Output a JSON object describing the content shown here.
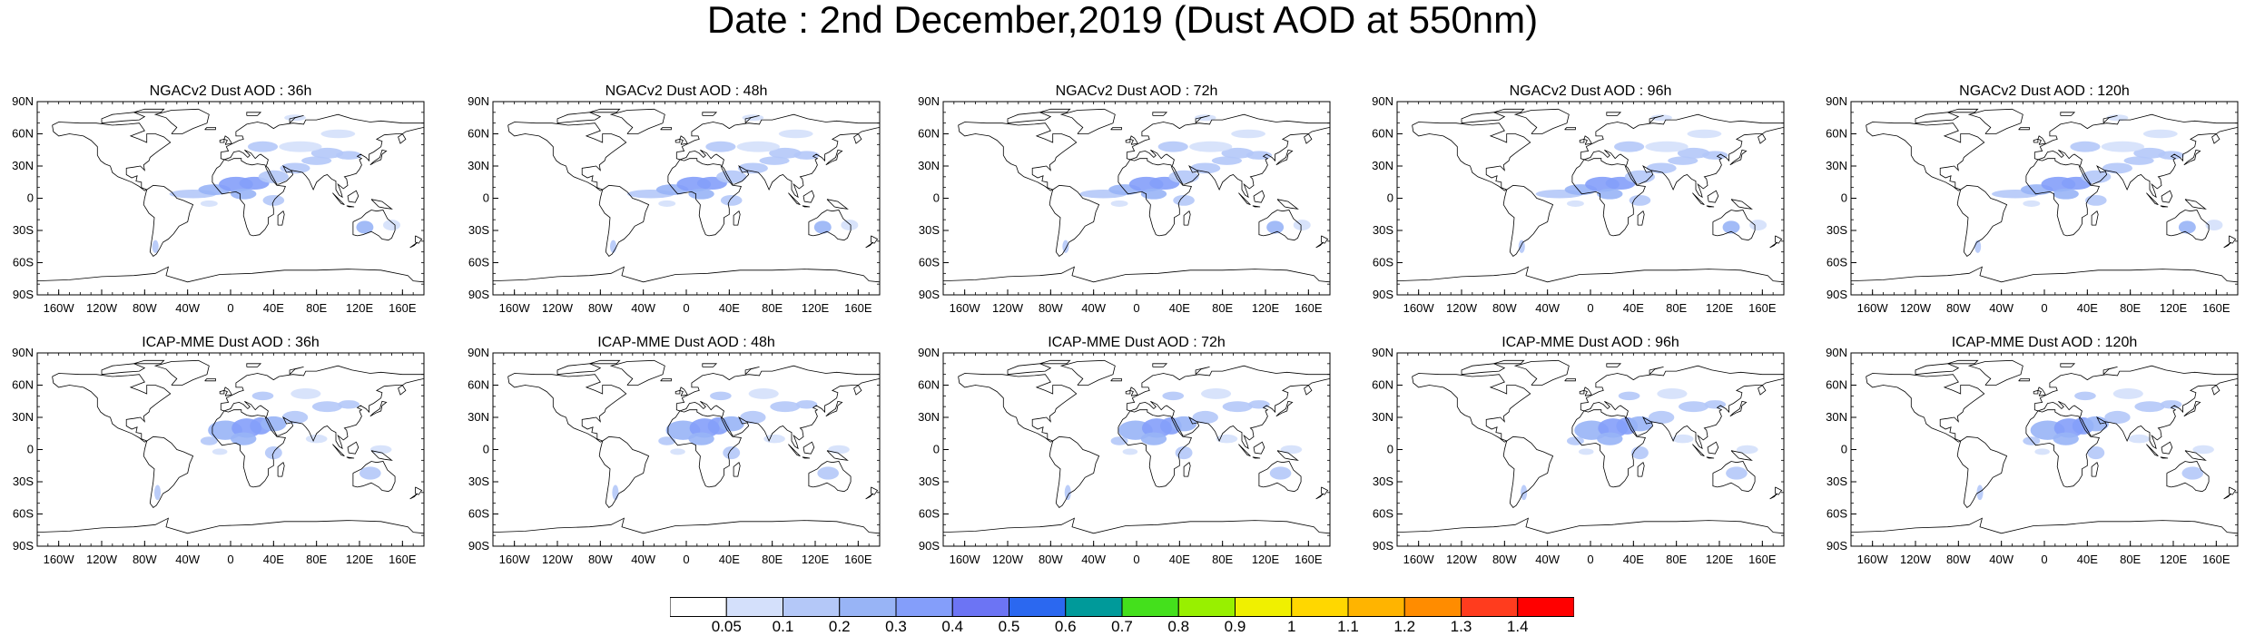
{
  "title": "Date : 2nd December,2019 (Dust AOD at 550nm)",
  "panels": [
    {
      "title": "NGACv2 Dust AOD : 36h"
    },
    {
      "title": "NGACv2 Dust AOD : 48h"
    },
    {
      "title": "NGACv2 Dust AOD : 72h"
    },
    {
      "title": "NGACv2 Dust AOD : 96h"
    },
    {
      "title": "NGACv2 Dust AOD : 120h"
    },
    {
      "title": "ICAP-MME Dust AOD : 36h"
    },
    {
      "title": "ICAP-MME Dust AOD : 48h"
    },
    {
      "title": "ICAP-MME Dust AOD : 72h"
    },
    {
      "title": "ICAP-MME Dust AOD : 96h"
    },
    {
      "title": "ICAP-MME Dust AOD : 120h"
    }
  ],
  "lat_labels": [
    "90N",
    "60N",
    "30N",
    "0",
    "30S",
    "60S",
    "90S"
  ],
  "lon_labels": [
    "160W",
    "120W",
    "80W",
    "40W",
    "0",
    "40E",
    "80E",
    "120E",
    "160E"
  ],
  "colorbar": {
    "labels": [
      "0.05",
      "0.1",
      "0.2",
      "0.3",
      "0.4",
      "0.5",
      "0.6",
      "0.7",
      "0.8",
      "0.9",
      "1",
      "1.1",
      "1.2",
      "1.3",
      "1.4"
    ],
    "colors": [
      "#ffffff",
      "#d4e0fb",
      "#b4c8f8",
      "#98b4f6",
      "#849efa",
      "#6c74f4",
      "#2b68f0",
      "#009a9a",
      "#44e01c",
      "#98f000",
      "#f0f000",
      "#ffd700",
      "#ffb400",
      "#ff8c00",
      "#ff3c1e",
      "#ff0000"
    ]
  }
}
